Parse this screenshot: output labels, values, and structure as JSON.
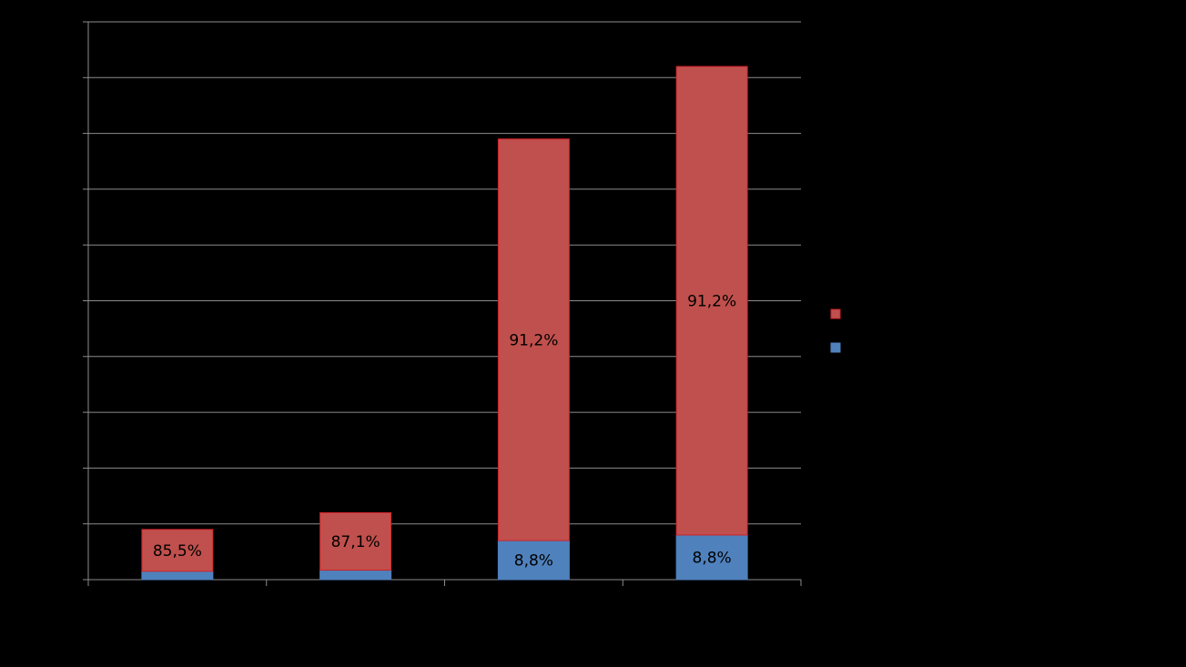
{
  "chart_data": {
    "type": "bar",
    "stacked": true,
    "categories": [
      "",
      "",
      "",
      ""
    ],
    "y_gridlines": 10,
    "grid": true,
    "legend_position": "right",
    "series": [
      {
        "color": "#4F81BD",
        "values": [
          1.5,
          1.7,
          7.0,
          8.0
        ],
        "labels": [
          "",
          "",
          "8,8%",
          "8,8%"
        ]
      },
      {
        "color": "#C0504D",
        "values": [
          7.5,
          10.3,
          72.0,
          84.0
        ],
        "labels": [
          "85,5%",
          "87,1%",
          "91,2%",
          "91,2%"
        ]
      }
    ],
    "ylim": [
      0,
      100
    ]
  }
}
